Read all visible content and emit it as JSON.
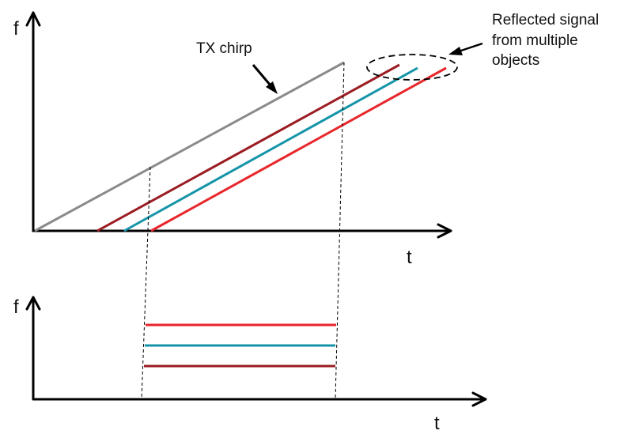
{
  "top_plot": {
    "y_axis_label": "f",
    "x_axis_label": "t"
  },
  "bottom_plot": {
    "y_axis_label": "f",
    "x_axis_label": "t"
  },
  "annotations": {
    "tx_chirp": "TX chirp",
    "reflected_line_1": "Reflected signal",
    "reflected_line_2": "from multiple",
    "reflected_line_3": "objects"
  },
  "colors": {
    "axis": "#000000",
    "tx_chirp": "#8a8a8a",
    "reflection_dark_red": "#9b1c22",
    "reflection_teal": "#1594a8",
    "reflection_red": "#e8262b",
    "guide_lines": "#000000"
  }
}
